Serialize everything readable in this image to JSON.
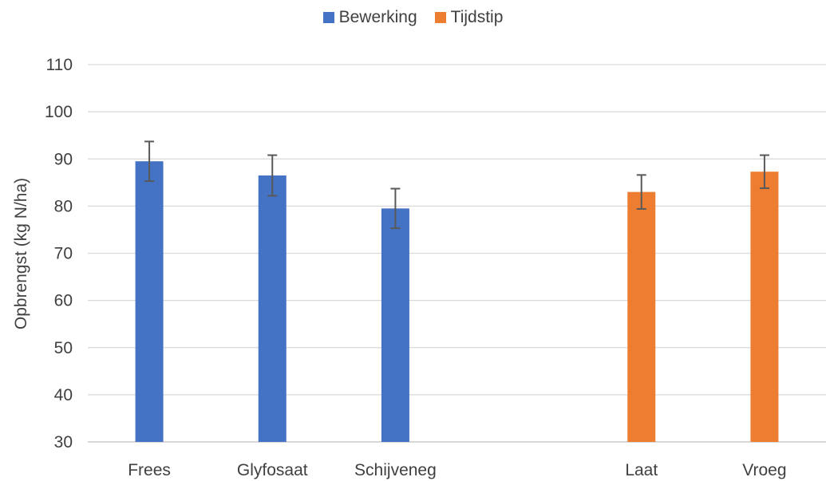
{
  "chart_data": {
    "type": "bar",
    "categories": [
      "Frees",
      "Glyfosaat",
      "Schijveneg",
      "",
      "Laat",
      "Vroeg"
    ],
    "series": [
      {
        "name": "Bewerking",
        "color": "#4472C4",
        "values": [
          89.5,
          86.5,
          79.5,
          null,
          null,
          null
        ],
        "error": [
          4.2,
          4.3,
          4.2,
          null,
          null,
          null
        ]
      },
      {
        "name": "Tijdstip",
        "color": "#ED7D31",
        "values": [
          null,
          null,
          null,
          null,
          83,
          87.3
        ],
        "error": [
          null,
          null,
          null,
          null,
          3.6,
          3.5
        ]
      }
    ],
    "ylabel": "Opbrengst (kg N/ha)",
    "xlabel": "",
    "ylim": [
      30,
      110
    ],
    "yticks": [
      30,
      40,
      50,
      60,
      70,
      80,
      90,
      100,
      110
    ],
    "grid": true,
    "legend_position": "top-center"
  }
}
